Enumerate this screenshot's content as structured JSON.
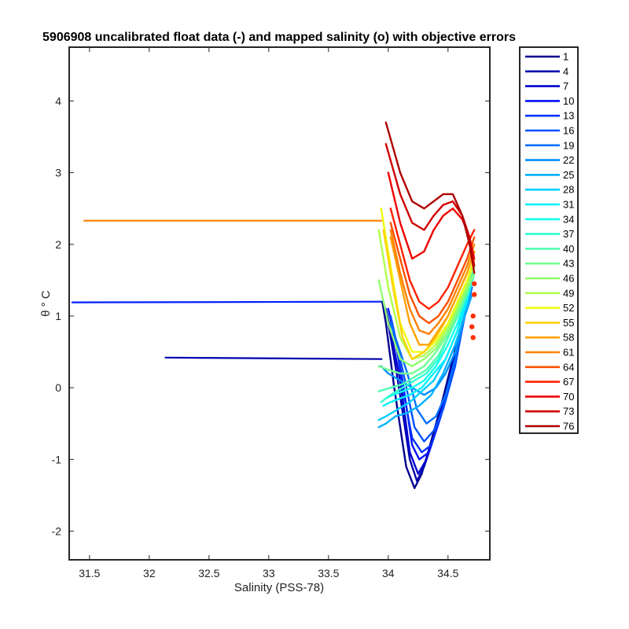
{
  "chart_data": {
    "type": "line",
    "title": "5906908 uncalibrated float data (-) and mapped salinity (o) with objective errors",
    "xlabel": "Salinity (PSS-78)",
    "ylabel": "θ ° C",
    "xlim": [
      31.33,
      34.85
    ],
    "ylim": [
      -2.4,
      4.75
    ],
    "xticks": [
      31.5,
      32,
      32.5,
      33,
      33.5,
      34,
      34.5
    ],
    "xtick_labels": [
      "31.5",
      "32",
      "32.5",
      "33",
      "33.5",
      "34",
      "34.5"
    ],
    "yticks": [
      -2,
      -1,
      0,
      1,
      2,
      3,
      4
    ],
    "ytick_labels": [
      "-2",
      "-1",
      "0",
      "1",
      "2",
      "3",
      "4"
    ],
    "grid": false,
    "legend_position": "outside-right",
    "legend": [
      "1",
      "4",
      "7",
      "10",
      "13",
      "16",
      "19",
      "22",
      "25",
      "28",
      "31",
      "34",
      "37",
      "40",
      "43",
      "46",
      "49",
      "52",
      "55",
      "58",
      "61",
      "64",
      "67",
      "70",
      "73",
      "76"
    ],
    "colormap": "jet",
    "series": [
      {
        "name": "1",
        "color": "#00008f",
        "x": [
          34.7,
          34.6,
          34.45,
          34.35,
          34.28,
          34.22,
          34.15,
          34.05,
          33.98,
          33.95
        ],
        "y": [
          1.3,
          0.8,
          -0.2,
          -0.8,
          -1.2,
          -1.4,
          -1.1,
          0.0,
          0.9,
          1.2
        ]
      },
      {
        "name": "4",
        "color": "#0000af",
        "x": [
          34.7,
          34.62,
          34.48,
          34.38,
          34.3,
          34.24,
          34.18,
          34.08,
          34.0,
          33.96
        ],
        "y": [
          1.3,
          0.9,
          -0.1,
          -0.7,
          -1.1,
          -1.3,
          -1.0,
          0.1,
          0.9,
          1.2
        ]
      },
      {
        "name": "7",
        "color": "#0000cf",
        "x": [
          34.7,
          34.62,
          34.5,
          34.4,
          34.32,
          34.25,
          34.18,
          34.1,
          34.02,
          33.98
        ],
        "y": [
          1.3,
          0.9,
          0.0,
          -0.6,
          -1.0,
          -1.2,
          -0.9,
          0.1,
          0.8,
          1.1
        ]
      },
      {
        "name": "10",
        "color": "#0010ff",
        "x": [
          34.7,
          34.64,
          34.52,
          34.42,
          34.34,
          34.26,
          34.2,
          34.12,
          34.04,
          34.0
        ],
        "y": [
          1.4,
          1.0,
          0.1,
          -0.5,
          -0.9,
          -1.0,
          -0.8,
          0.1,
          0.8,
          1.1
        ]
      },
      {
        "name": "13",
        "color": "#0030ff",
        "x": [
          34.7,
          34.64,
          34.54,
          34.44,
          34.36,
          34.28,
          34.2,
          34.12,
          34.06,
          34.02
        ],
        "y": [
          1.4,
          1.0,
          0.2,
          -0.4,
          -0.8,
          -0.9,
          -0.7,
          0.0,
          0.7,
          1.0
        ]
      },
      {
        "name": "16",
        "color": "#0050ff",
        "x": [
          34.7,
          34.65,
          34.56,
          34.46,
          34.38,
          34.3,
          34.22,
          34.14,
          34.06,
          34.02
        ],
        "y": [
          1.4,
          1.1,
          0.3,
          -0.3,
          -0.6,
          -0.75,
          -0.55,
          0.1,
          0.7,
          1.0
        ]
      },
      {
        "name": "19",
        "color": "#0070ff",
        "x": [
          34.7,
          34.65,
          34.56,
          34.48,
          34.4,
          34.32,
          34.24,
          34.16,
          34.08,
          34.02
        ],
        "y": [
          1.4,
          1.1,
          0.4,
          -0.1,
          -0.4,
          -0.5,
          -0.3,
          0.2,
          0.6,
          0.9
        ]
      },
      {
        "name": "22",
        "color": "#0090ff",
        "x": [
          34.7,
          34.64,
          34.56,
          34.48,
          34.4,
          34.3,
          34.2,
          34.1,
          34.0,
          33.94
        ],
        "y": [
          1.3,
          1.0,
          0.5,
          0.2,
          0.0,
          -0.1,
          0.0,
          0.1,
          0.2,
          0.3
        ]
      },
      {
        "name": "25",
        "color": "#00b0ff",
        "x": [
          34.7,
          34.64,
          34.56,
          34.46,
          34.36,
          34.26,
          34.16,
          34.06,
          33.98,
          33.92
        ],
        "y": [
          1.3,
          1.0,
          0.6,
          0.2,
          -0.1,
          -0.25,
          -0.35,
          -0.4,
          -0.5,
          -0.55
        ]
      },
      {
        "name": "28",
        "color": "#00d0ff",
        "x": [
          34.72,
          34.66,
          34.58,
          34.48,
          34.38,
          34.28,
          34.18,
          34.08,
          33.98,
          33.92
        ],
        "y": [
          1.7,
          1.3,
          0.8,
          0.4,
          0.1,
          -0.05,
          -0.2,
          -0.3,
          -0.4,
          -0.45
        ]
      },
      {
        "name": "31",
        "color": "#00f0ff",
        "x": [
          34.72,
          34.66,
          34.58,
          34.48,
          34.38,
          34.28,
          34.18,
          34.1,
          34.02,
          33.96
        ],
        "y": [
          1.6,
          1.2,
          0.8,
          0.4,
          0.2,
          0.0,
          -0.1,
          -0.15,
          -0.2,
          -0.25
        ]
      },
      {
        "name": "34",
        "color": "#10ffef",
        "x": [
          34.72,
          34.66,
          34.58,
          34.5,
          34.4,
          34.3,
          34.2,
          34.12,
          34.04,
          33.98
        ],
        "y": [
          1.6,
          1.3,
          0.9,
          0.6,
          0.3,
          0.1,
          0.0,
          -0.05,
          -0.1,
          -0.15
        ]
      },
      {
        "name": "37",
        "color": "#30ffcf",
        "x": [
          34.72,
          34.66,
          34.58,
          34.5,
          34.42,
          34.32,
          34.22,
          34.12,
          34.02,
          33.94
        ],
        "y": [
          1.6,
          1.3,
          1.0,
          0.7,
          0.4,
          0.2,
          0.1,
          0.0,
          -0.1,
          -0.2
        ]
      },
      {
        "name": "40",
        "color": "#50ffaf",
        "x": [
          34.72,
          34.66,
          34.58,
          34.5,
          34.42,
          34.32,
          34.22,
          34.12,
          34.02,
          33.92
        ],
        "y": [
          1.6,
          1.3,
          1.0,
          0.7,
          0.45,
          0.25,
          0.15,
          0.05,
          0.0,
          -0.05
        ]
      },
      {
        "name": "43",
        "color": "#70ff8f",
        "x": [
          34.72,
          34.66,
          34.58,
          34.5,
          34.4,
          34.3,
          34.2,
          34.1,
          34.0,
          33.92
        ],
        "y": [
          1.6,
          1.35,
          1.05,
          0.75,
          0.5,
          0.3,
          0.2,
          0.2,
          0.25,
          0.3
        ]
      },
      {
        "name": "46",
        "color": "#90ff6f",
        "x": [
          34.72,
          34.66,
          34.58,
          34.5,
          34.4,
          34.3,
          34.2,
          34.1,
          34.0,
          33.92
        ],
        "y": [
          1.6,
          1.4,
          1.1,
          0.8,
          0.55,
          0.4,
          0.3,
          0.4,
          0.9,
          1.5
        ]
      },
      {
        "name": "49",
        "color": "#afff50",
        "x": [
          34.72,
          34.66,
          34.58,
          34.5,
          34.4,
          34.3,
          34.2,
          34.1,
          34.0,
          33.92
        ],
        "y": [
          1.7,
          1.45,
          1.15,
          0.85,
          0.6,
          0.45,
          0.4,
          0.7,
          1.4,
          2.2
        ]
      },
      {
        "name": "52",
        "color": "#efff10",
        "x": [
          34.72,
          34.66,
          34.58,
          34.5,
          34.4,
          34.3,
          34.2,
          34.1,
          34.02,
          33.94
        ],
        "y": [
          1.8,
          1.5,
          1.2,
          0.9,
          0.65,
          0.5,
          0.5,
          0.9,
          1.7,
          2.5
        ]
      },
      {
        "name": "55",
        "color": "#ffd000",
        "x": [
          34.72,
          34.66,
          34.58,
          34.5,
          34.4,
          34.3,
          34.2,
          34.12,
          34.04,
          33.96
        ],
        "y": [
          1.9,
          1.6,
          1.3,
          1.0,
          0.7,
          0.5,
          0.4,
          0.7,
          1.4,
          2.2
        ]
      },
      {
        "name": "58",
        "color": "#ffa000",
        "x": [
          34.72,
          34.66,
          34.58,
          34.5,
          34.42,
          34.34,
          34.26,
          34.18,
          34.1,
          34.02
        ],
        "y": [
          1.9,
          1.6,
          1.3,
          1.0,
          0.8,
          0.6,
          0.6,
          0.9,
          1.5,
          2.1
        ]
      },
      {
        "name": "61",
        "color": "#ff8000",
        "x": [
          34.72,
          34.66,
          34.58,
          34.5,
          34.42,
          34.34,
          34.26,
          34.18,
          34.1,
          34.02
        ],
        "y": [
          2.0,
          1.7,
          1.4,
          1.1,
          0.9,
          0.75,
          0.8,
          1.1,
          1.6,
          2.2
        ]
      },
      {
        "name": "64",
        "color": "#ff5000",
        "x": [
          34.72,
          34.66,
          34.58,
          34.5,
          34.42,
          34.34,
          34.26,
          34.18,
          34.1,
          34.02
        ],
        "y": [
          2.1,
          1.8,
          1.5,
          1.2,
          1.0,
          0.9,
          1.0,
          1.3,
          1.8,
          2.3
        ]
      },
      {
        "name": "67",
        "color": "#ff2000",
        "x": [
          34.72,
          34.66,
          34.58,
          34.5,
          34.42,
          34.34,
          34.26,
          34.18,
          34.1,
          34.02
        ],
        "y": [
          2.2,
          2.0,
          1.7,
          1.4,
          1.2,
          1.1,
          1.2,
          1.5,
          2.0,
          2.5
        ]
      },
      {
        "name": "70",
        "color": "#ef0000",
        "x": [
          34.72,
          34.68,
          34.62,
          34.54,
          34.46,
          34.38,
          34.3,
          34.2,
          34.1,
          34.0
        ],
        "y": [
          1.8,
          2.1,
          2.35,
          2.5,
          2.4,
          2.2,
          1.9,
          1.8,
          2.3,
          3.0
        ]
      },
      {
        "name": "73",
        "color": "#cf0000",
        "x": [
          34.72,
          34.68,
          34.62,
          34.54,
          34.46,
          34.38,
          34.3,
          34.2,
          34.1,
          33.98
        ],
        "y": [
          1.7,
          2.1,
          2.4,
          2.6,
          2.55,
          2.4,
          2.2,
          2.3,
          2.7,
          3.4
        ]
      },
      {
        "name": "76",
        "color": "#af0000",
        "x": [
          34.72,
          34.68,
          34.62,
          34.54,
          34.46,
          34.38,
          34.3,
          34.2,
          34.1,
          33.98
        ],
        "y": [
          1.6,
          2.0,
          2.4,
          2.7,
          2.7,
          2.6,
          2.5,
          2.6,
          3.0,
          3.7
        ]
      }
    ],
    "outlier_lines": [
      {
        "color": "#ff8000",
        "x": [
          31.45,
          33.95
        ],
        "y": [
          2.33,
          2.33
        ]
      },
      {
        "color": "#0020ff",
        "x": [
          31.35,
          33.95
        ],
        "y": [
          1.19,
          1.2
        ]
      },
      {
        "color": "#0000af",
        "x": [
          32.13,
          33.95
        ],
        "y": [
          0.42,
          0.4
        ]
      }
    ],
    "mapped_salinity": {
      "color": "#ff3000",
      "x": [
        34.72,
        34.72,
        34.71,
        34.7,
        34.71
      ],
      "y": [
        1.45,
        1.3,
        1.0,
        0.85,
        0.7
      ]
    }
  }
}
